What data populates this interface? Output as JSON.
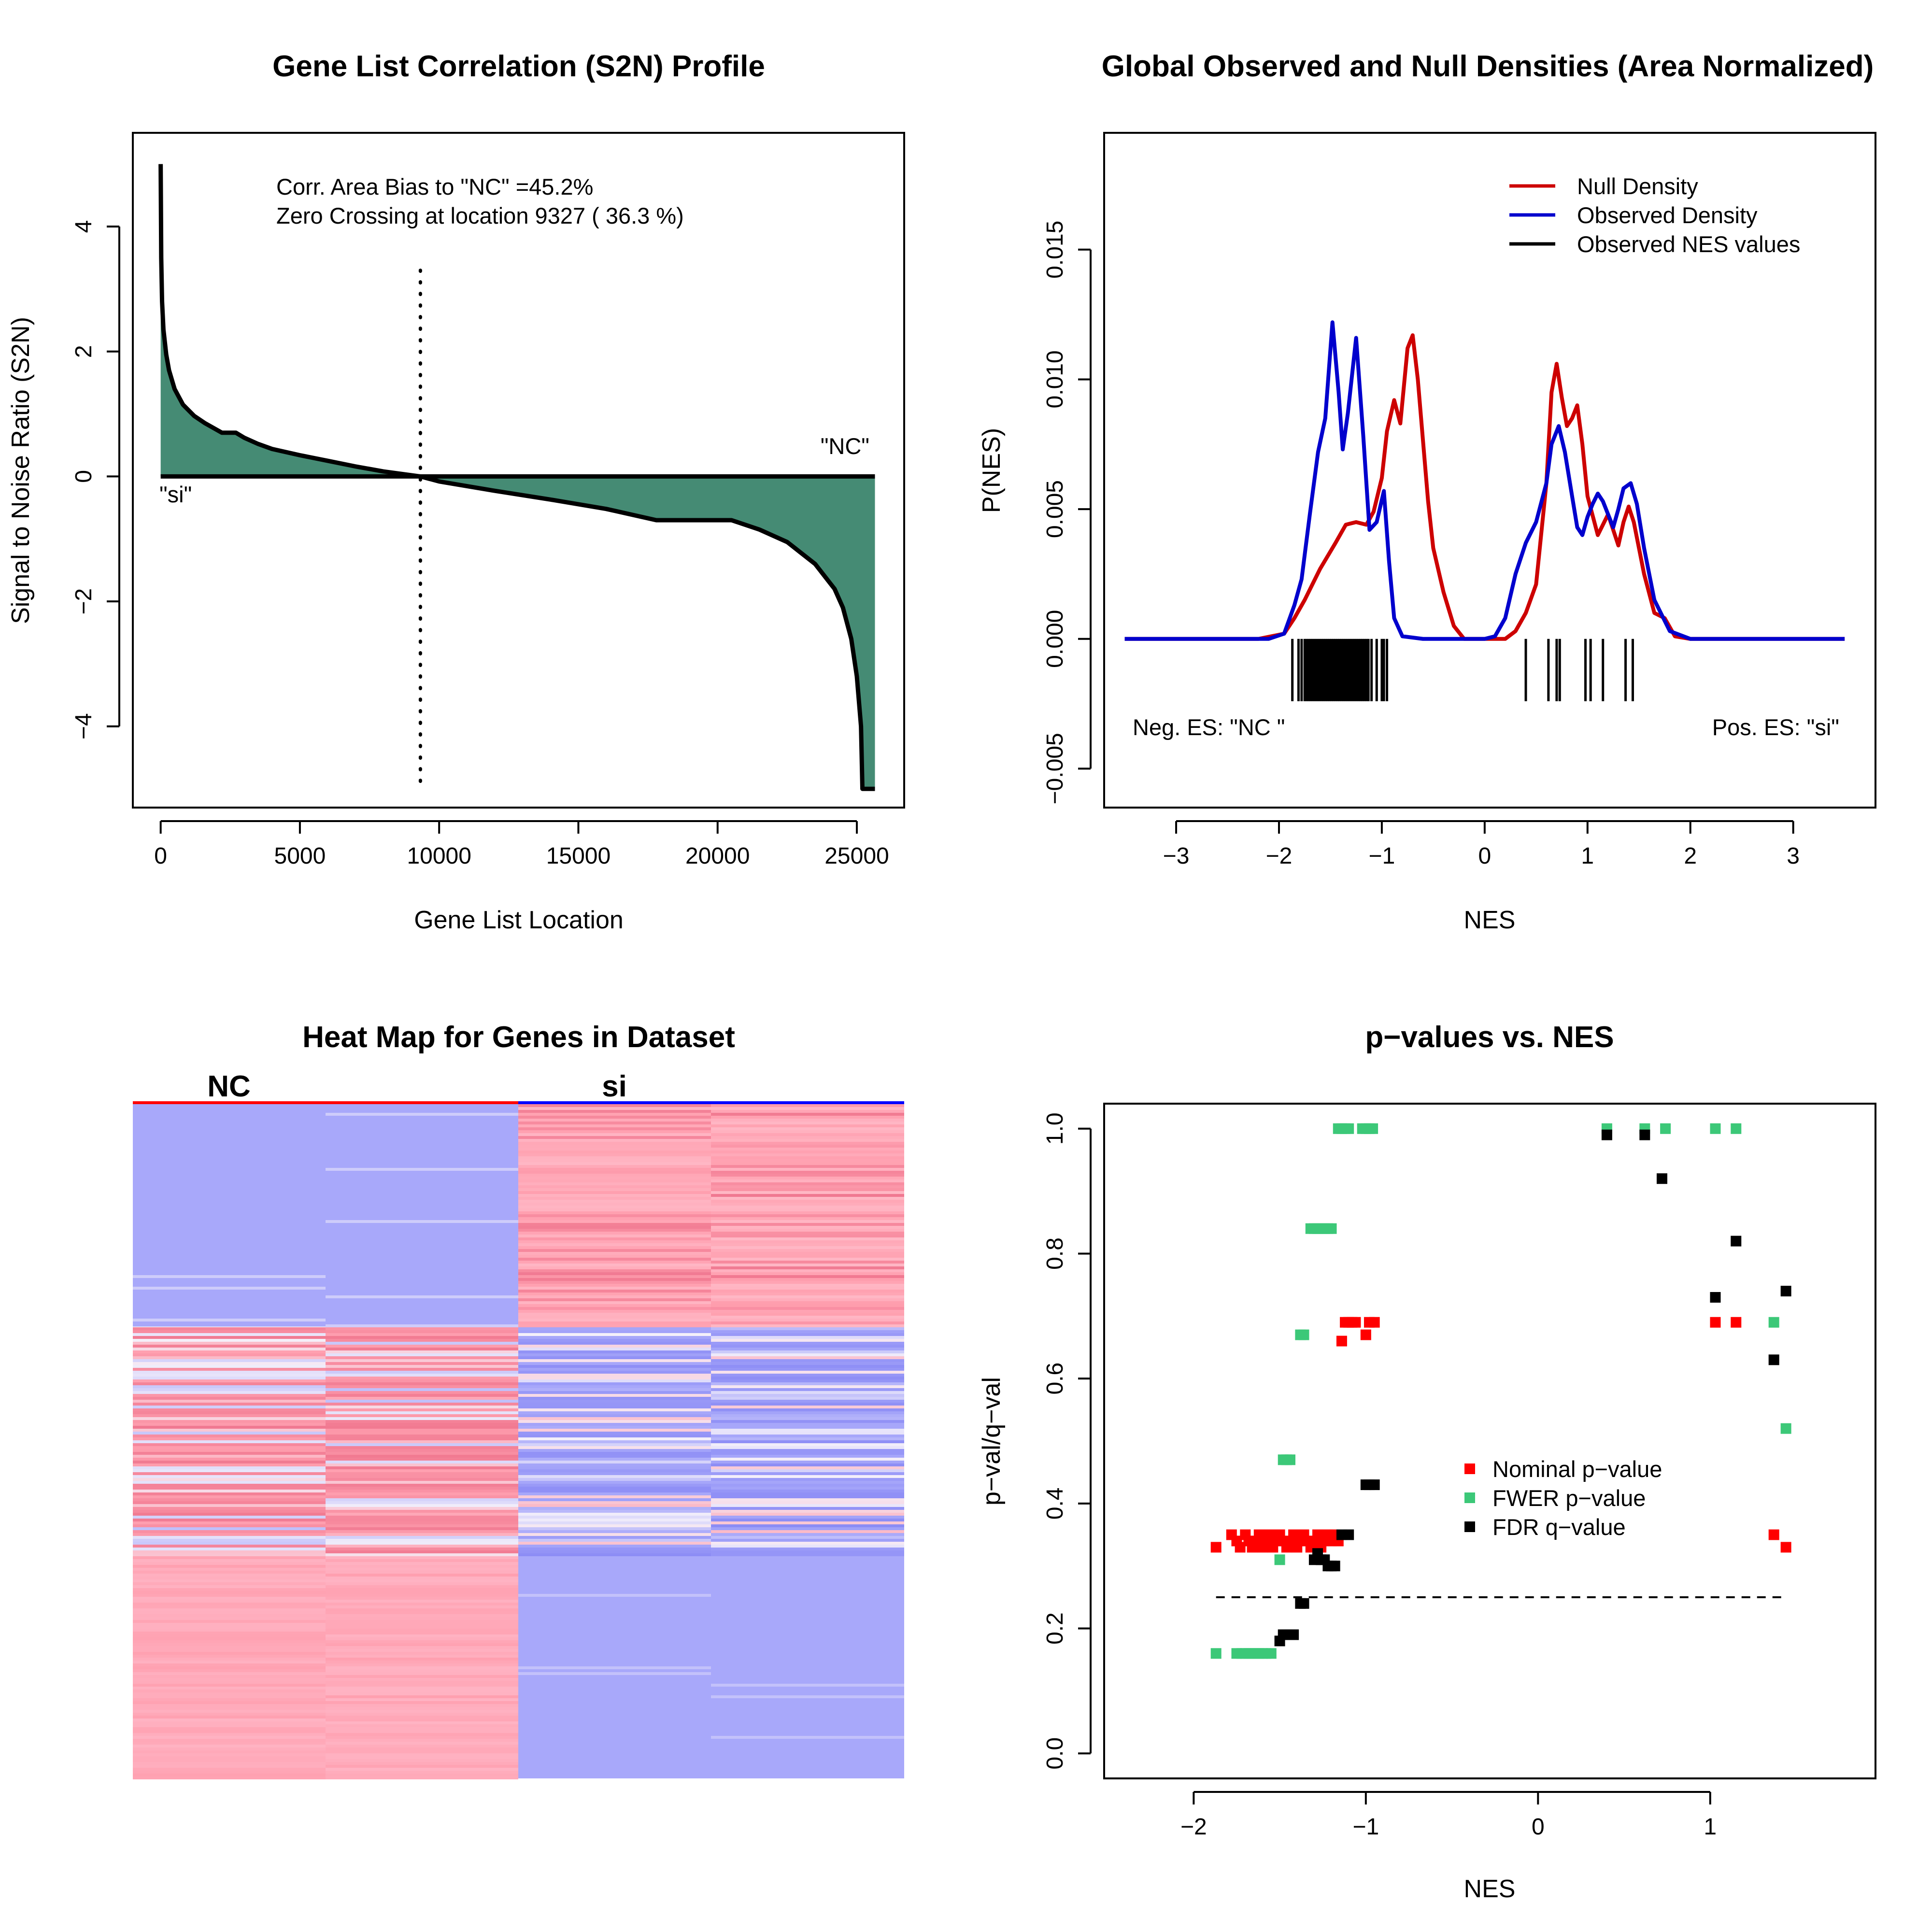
{
  "panels": {
    "s2n": {
      "title": "Gene List Correlation (S2N) Profile",
      "xlabel": "Gene List Location",
      "ylabel": "Signal to Noise Ratio (S2N)",
      "annotation_1": "Corr. Area Bias to \"NC\" =45.2%",
      "annotation_2": "Zero Crossing at location  9327  ( 36.3  %)",
      "label_right": "\"NC\"",
      "label_left": "\"si\""
    },
    "density": {
      "title": "Global Observed and Null Densities (Area Normalized)",
      "xlabel": "NES",
      "ylabel": "P(NES)",
      "label_neg": "Neg. ES: \"NC \"",
      "label_pos": "Pos. ES: \"si\"",
      "legend": [
        "Null Density",
        "Observed Density",
        "Observed NES values"
      ]
    },
    "heatmap": {
      "title": "Heat Map for Genes in Dataset",
      "group_1": "NC",
      "group_2": "si"
    },
    "pvals": {
      "title": "p−values vs. NES",
      "xlabel": "NES",
      "ylabel": "p−val/q−val",
      "legend": [
        "Nominal p−value",
        "FWER p−value",
        "FDR q−value"
      ]
    }
  },
  "colors": {
    "area_fill": "#458B74",
    "null_density": "#CD0000",
    "observed_density": "#0000CD",
    "nominal": "#FF0000",
    "fwer": "#3CC878",
    "fdr": "#000000",
    "heat_red": "#FFA0B0",
    "heat_blue": "#A8A8FA"
  },
  "chart_data": [
    {
      "type": "area",
      "title": "Gene List Correlation (S2N) Profile",
      "xlabel": "Gene List Location",
      "ylabel": "Signal to Noise Ratio (S2N)",
      "xlim": [
        -1000,
        26700
      ],
      "ylim": [
        -5.3,
        5.5
      ],
      "xticks": [
        0,
        5000,
        10000,
        15000,
        20000,
        25000
      ],
      "yticks": [
        -4,
        -2,
        0,
        2,
        4
      ],
      "zero_crossing": 9327,
      "x": [
        0,
        20,
        50,
        100,
        200,
        300,
        500,
        800,
        1200,
        1600,
        2000,
        2200,
        2700,
        3000,
        3500,
        4000,
        5000,
        6000,
        7000,
        8000,
        9327,
        10000,
        12000,
        14000,
        16000,
        17800,
        18500,
        20500,
        21500,
        22500,
        23500,
        24200,
        24500,
        24800,
        25000,
        25150,
        25200,
        25300,
        25650
      ],
      "y": [
        5.0,
        3.5,
        2.8,
        2.35,
        1.95,
        1.7,
        1.4,
        1.15,
        0.97,
        0.85,
        0.75,
        0.7,
        0.7,
        0.62,
        0.52,
        0.44,
        0.34,
        0.25,
        0.16,
        0.08,
        0.0,
        -0.08,
        -0.23,
        -0.37,
        -0.52,
        -0.7,
        -0.7,
        -0.7,
        -0.85,
        -1.05,
        -1.4,
        -1.8,
        -2.1,
        -2.6,
        -3.2,
        -4.0,
        -5.0,
        -5.0,
        -5.0
      ]
    },
    {
      "type": "line",
      "title": "Global Observed and Null Densities (Area Normalized)",
      "xlabel": "NES",
      "ylabel": "P(NES)",
      "xlim": [
        -3.7,
        3.8
      ],
      "ylim": [
        -0.0065,
        0.0195
      ],
      "xticks": [
        -3,
        -2,
        -1,
        0,
        1,
        2,
        3
      ],
      "yticks": [
        -0.005,
        0.0,
        0.005,
        0.01,
        0.015
      ],
      "legend_position": "top-right",
      "series": [
        {
          "name": "Null Density",
          "x": [
            -3.5,
            -2.2,
            -1.95,
            -1.85,
            -1.75,
            -1.6,
            -1.45,
            -1.35,
            -1.25,
            -1.15,
            -1.08,
            -1.0,
            -0.95,
            -0.88,
            -0.82,
            -0.75,
            -0.7,
            -0.65,
            -0.55,
            -0.5,
            -0.4,
            -0.3,
            -0.2,
            0.0,
            0.2,
            0.3,
            0.4,
            0.5,
            0.6,
            0.65,
            0.7,
            0.75,
            0.8,
            0.85,
            0.9,
            0.95,
            1.0,
            1.1,
            1.2,
            1.3,
            1.35,
            1.4,
            1.45,
            1.55,
            1.65,
            1.75,
            1.85,
            2.0,
            3.5
          ],
          "y": [
            0.0,
            0.0,
            0.0002,
            0.0008,
            0.0015,
            0.0027,
            0.0037,
            0.0044,
            0.0045,
            0.0044,
            0.0049,
            0.0062,
            0.008,
            0.0092,
            0.0083,
            0.0112,
            0.0117,
            0.01,
            0.0053,
            0.0035,
            0.0018,
            0.0005,
            0.0,
            0.0,
            0.0,
            0.0003,
            0.001,
            0.0021,
            0.006,
            0.0095,
            0.0106,
            0.0093,
            0.0082,
            0.0085,
            0.009,
            0.0075,
            0.0055,
            0.004,
            0.0048,
            0.0036,
            0.0045,
            0.0051,
            0.0045,
            0.0025,
            0.001,
            0.0008,
            0.0001,
            0.0,
            0.0
          ]
        },
        {
          "name": "Observed Density",
          "x": [
            -3.5,
            -2.1,
            -1.95,
            -1.85,
            -1.78,
            -1.7,
            -1.62,
            -1.55,
            -1.48,
            -1.42,
            -1.38,
            -1.33,
            -1.25,
            -1.18,
            -1.12,
            -1.05,
            -0.98,
            -0.93,
            -0.88,
            -0.8,
            -0.6,
            0.0,
            0.1,
            0.2,
            0.3,
            0.4,
            0.5,
            0.6,
            0.65,
            0.72,
            0.78,
            0.85,
            0.9,
            0.95,
            1.0,
            1.05,
            1.1,
            1.15,
            1.2,
            1.25,
            1.3,
            1.35,
            1.42,
            1.48,
            1.55,
            1.65,
            1.8,
            2.0,
            3.5
          ],
          "y": [
            0.0,
            0.0,
            0.0002,
            0.0013,
            0.0023,
            0.0048,
            0.0072,
            0.0085,
            0.0122,
            0.0095,
            0.0073,
            0.0087,
            0.0116,
            0.0078,
            0.0042,
            0.0045,
            0.0057,
            0.003,
            0.0008,
            0.0001,
            0.0,
            0.0,
            0.0001,
            0.0008,
            0.0025,
            0.0037,
            0.0045,
            0.006,
            0.0075,
            0.0082,
            0.0072,
            0.0055,
            0.0043,
            0.004,
            0.0047,
            0.0052,
            0.0056,
            0.0053,
            0.0048,
            0.0043,
            0.005,
            0.0058,
            0.006,
            0.0052,
            0.0035,
            0.0015,
            0.0003,
            0.0,
            0.0
          ]
        },
        {
          "name": "Observed NES values",
          "x": [
            -1.87,
            -1.81,
            -1.78,
            -1.75,
            -1.73,
            -1.71,
            -1.69,
            -1.67,
            -1.65,
            -1.63,
            -1.61,
            -1.59,
            -1.57,
            -1.55,
            -1.53,
            -1.51,
            -1.49,
            -1.47,
            -1.45,
            -1.43,
            -1.41,
            -1.39,
            -1.37,
            -1.35,
            -1.33,
            -1.31,
            -1.29,
            -1.27,
            -1.25,
            -1.23,
            -1.21,
            -1.19,
            -1.17,
            -1.15,
            -1.13,
            -1.1,
            -1.05,
            -1.0,
            -0.98,
            -0.95,
            0.4,
            0.62,
            0.7,
            0.73,
            0.98,
            1.03,
            1.15,
            1.37,
            1.44
          ]
        }
      ]
    },
    {
      "type": "heatmap",
      "title": "Heat Map for Genes in Dataset",
      "columns": [
        "NC",
        "NC",
        "si",
        "si"
      ],
      "groups": [
        "NC",
        "si"
      ]
    },
    {
      "type": "scatter",
      "title": "p−values vs. NES",
      "xlabel": "NES",
      "ylabel": "p−val/q−val",
      "xlim": [
        -2.52,
        1.96
      ],
      "ylim": [
        -0.04,
        1.04
      ],
      "xticks": [
        -2,
        -1,
        0,
        1
      ],
      "yticks": [
        0.0,
        0.2,
        0.4,
        0.6,
        0.8,
        1.0
      ],
      "threshold": 0.25,
      "threshold_range": [
        -1.87,
        1.45
      ],
      "legend_position": "center",
      "series": [
        {
          "name": "Nominal p−value",
          "x": [
            -1.87,
            -1.78,
            -1.75,
            -1.73,
            -1.7,
            -1.68,
            -1.66,
            -1.64,
            -1.62,
            -1.6,
            -1.58,
            -1.56,
            -1.54,
            -1.52,
            -1.5,
            -1.48,
            -1.46,
            -1.44,
            -1.42,
            -1.4,
            -1.38,
            -1.36,
            -1.34,
            -1.32,
            -1.3,
            -1.28,
            -1.26,
            -1.24,
            -1.22,
            -1.2,
            -1.18,
            -1.16,
            -1.14,
            -1.12,
            -1.1,
            -1.08,
            -1.06,
            -1.0,
            -0.98,
            -0.95,
            1.03,
            1.15,
            1.37,
            1.44
          ],
          "y": [
            0.33,
            0.35,
            0.34,
            0.33,
            0.35,
            0.34,
            0.33,
            0.34,
            0.35,
            0.33,
            0.34,
            0.35,
            0.33,
            0.34,
            0.35,
            0.34,
            0.33,
            0.34,
            0.35,
            0.33,
            0.34,
            0.35,
            0.34,
            0.33,
            0.34,
            0.35,
            0.33,
            0.34,
            0.35,
            0.34,
            0.35,
            0.34,
            0.66,
            0.69,
            0.69,
            0.69,
            0.69,
            0.67,
            0.69,
            0.69,
            0.69,
            0.69,
            0.35,
            0.33
          ]
        },
        {
          "name": "FWER p−value",
          "x": [
            -1.87,
            -1.75,
            -1.72,
            -1.7,
            -1.68,
            -1.66,
            -1.64,
            -1.62,
            -1.6,
            -1.58,
            -1.55,
            -1.5,
            -1.48,
            -1.46,
            -1.44,
            -1.38,
            -1.36,
            -1.32,
            -1.3,
            -1.28,
            -1.26,
            -1.24,
            -1.22,
            -1.2,
            -1.16,
            -1.14,
            -1.12,
            -1.1,
            -1.02,
            -1.0,
            -0.98,
            -0.96,
            0.4,
            0.62,
            0.74,
            1.03,
            1.15,
            1.37,
            1.44
          ],
          "y": [
            0.16,
            0.16,
            0.16,
            0.16,
            0.16,
            0.16,
            0.16,
            0.16,
            0.16,
            0.16,
            0.16,
            0.31,
            0.47,
            0.47,
            0.47,
            0.67,
            0.67,
            0.84,
            0.84,
            0.84,
            0.84,
            0.84,
            0.84,
            0.84,
            1.0,
            1.0,
            1.0,
            1.0,
            1.0,
            1.0,
            1.0,
            1.0,
            1.0,
            1.0,
            1.0,
            1.0,
            1.0,
            0.69,
            0.52
          ]
        },
        {
          "name": "FDR q−value",
          "x": [
            -1.5,
            -1.48,
            -1.46,
            -1.44,
            -1.42,
            -1.38,
            -1.36,
            -1.3,
            -1.28,
            -1.26,
            -1.24,
            -1.22,
            -1.2,
            -1.18,
            -1.14,
            -1.1,
            -1.0,
            -0.98,
            -0.95,
            0.4,
            0.62,
            0.72,
            1.03,
            1.15,
            1.37,
            1.44
          ],
          "y": [
            0.18,
            0.19,
            0.19,
            0.19,
            0.19,
            0.24,
            0.24,
            0.31,
            0.32,
            0.31,
            0.31,
            0.3,
            0.3,
            0.3,
            0.35,
            0.35,
            0.43,
            0.43,
            0.43,
            0.99,
            0.99,
            0.92,
            0.73,
            0.82,
            0.63,
            0.74
          ]
        }
      ]
    }
  ]
}
